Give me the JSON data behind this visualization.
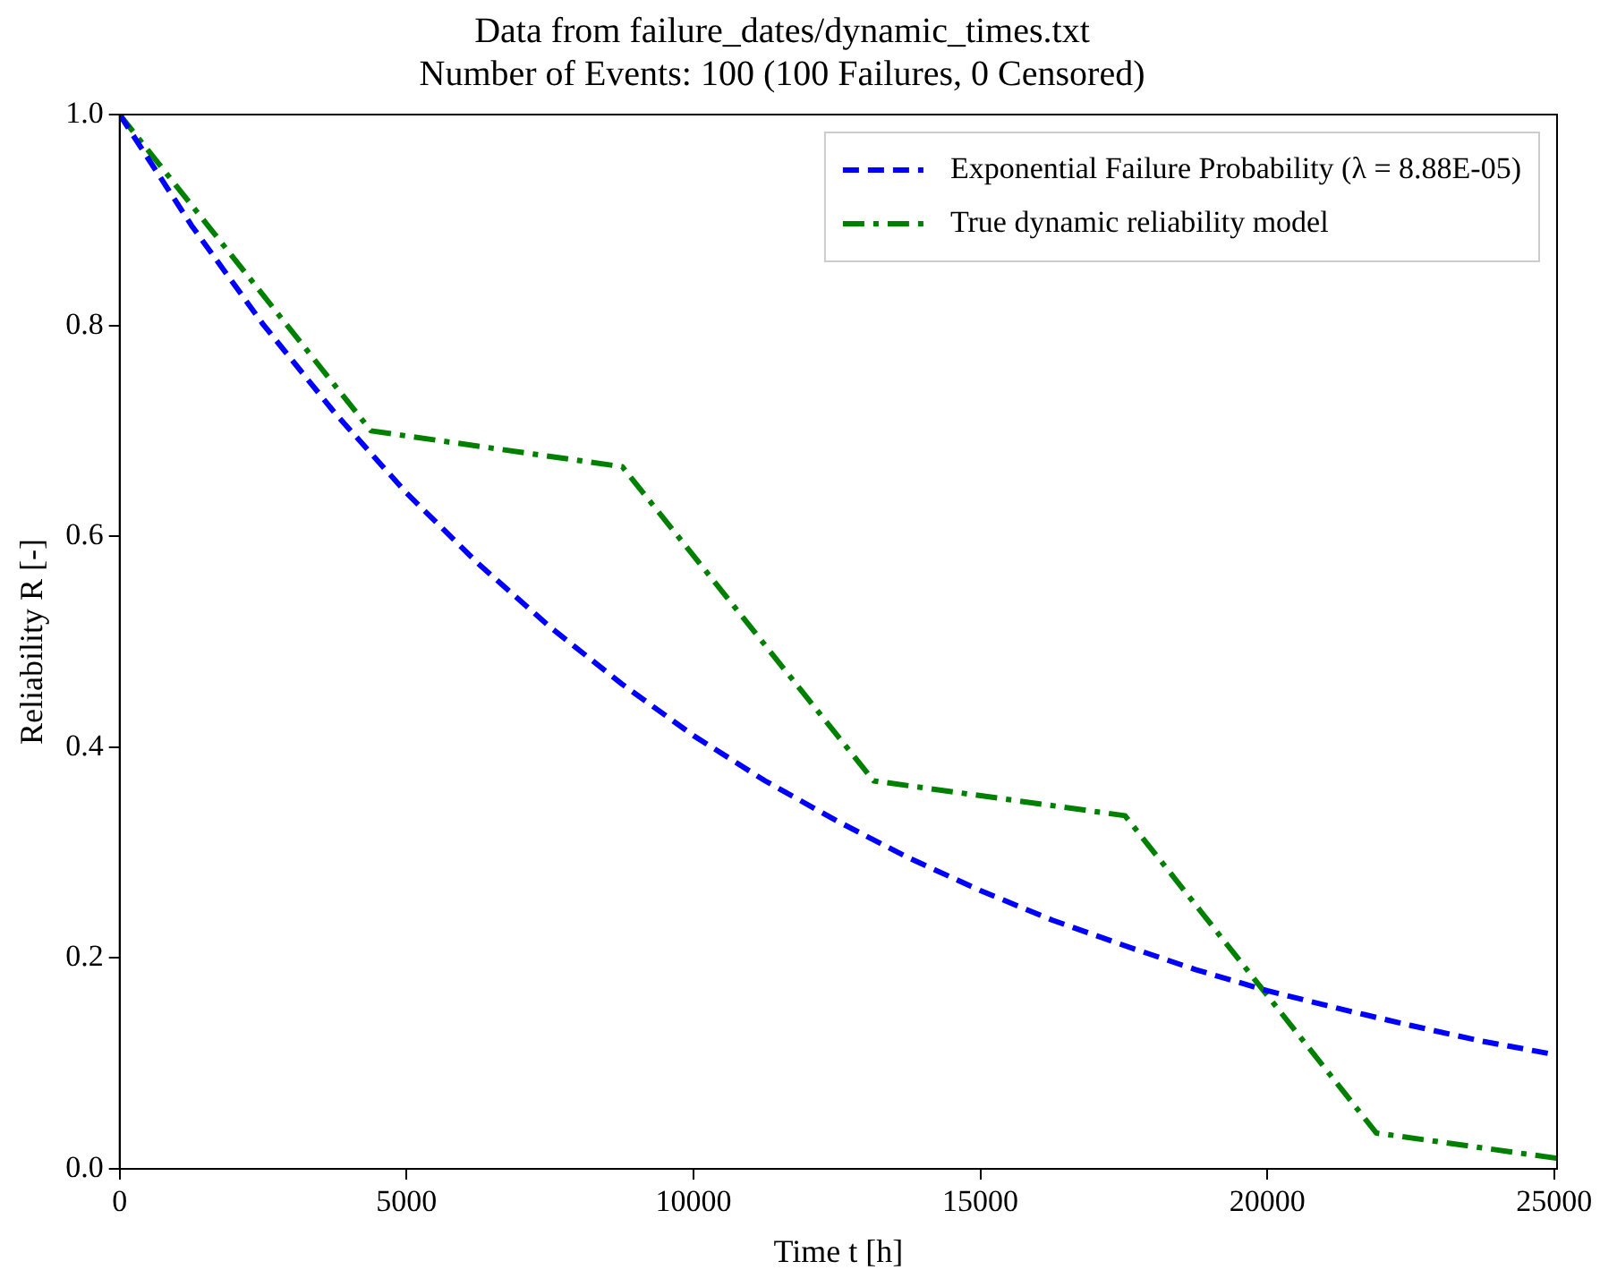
{
  "chart_data": {
    "type": "line",
    "title": "Data from failure_dates/dynamic_times.txt\nNumber of Events: 100 (100 Failures, 0 Censored)",
    "xlabel": "Time t [h]",
    "ylabel": "Reliability R [-]",
    "xlim": [
      0,
      25050
    ],
    "xticks": [
      0,
      5000,
      10000,
      15000,
      20000,
      25000
    ],
    "ylim": [
      0,
      1
    ],
    "yticks": [
      {
        "value": 0,
        "label": "0.0"
      },
      {
        "value": 0.2,
        "label": "0.2"
      },
      {
        "value": 0.4,
        "label": "0.4"
      },
      {
        "value": 0.6,
        "label": "0.6"
      },
      {
        "value": 0.8,
        "label": "0.8"
      },
      {
        "value": 1,
        "label": "1.0"
      }
    ],
    "grid": false,
    "legend": "top right",
    "marker": "none",
    "series": [
      {
        "name": "Exponential Failure Probability (λ = 8.88E-05)",
        "color": "#0000ff",
        "line_style": "dashed",
        "x": [
          0,
          1250,
          2500,
          3750,
          5000,
          6250,
          7500,
          8750,
          10000,
          11250,
          12500,
          13750,
          15000,
          16250,
          17500,
          18750,
          20000,
          21250,
          22500,
          23750,
          25050
        ],
        "values": [
          1,
          0.895,
          0.801,
          0.717,
          0.641,
          0.574,
          0.514,
          0.46,
          0.411,
          0.368,
          0.33,
          0.295,
          0.264,
          0.236,
          0.212,
          0.189,
          0.169,
          0.152,
          0.136,
          0.121,
          0.108
        ]
      },
      {
        "name": "True dynamic reliability model",
        "color": "#008000",
        "line_style": "dashdot",
        "x": [
          0,
          4380,
          8760,
          13140,
          17520,
          21900,
          25050
        ],
        "values": [
          1,
          0.7,
          0.666,
          0.368,
          0.335,
          0.034,
          0.01
        ]
      }
    ]
  }
}
